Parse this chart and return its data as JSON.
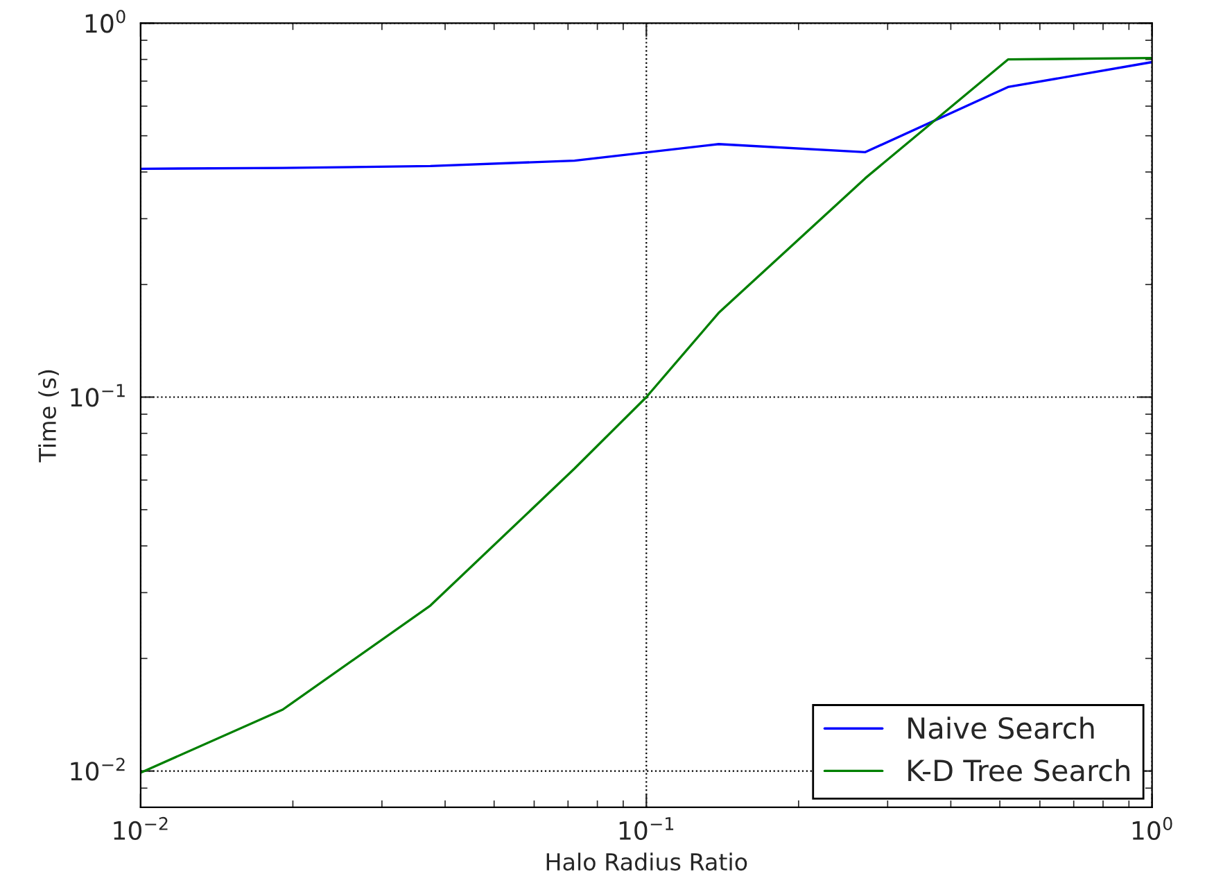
{
  "chart_data": {
    "type": "line",
    "xlabel": "Halo Radius Ratio",
    "ylabel": "Time (s)",
    "log": "xy",
    "grid": true,
    "legend": "bottom right",
    "xlim": [
      0.01,
      1
    ],
    "ylim": [
      0.008,
      1
    ],
    "xticks": [
      {
        "value": 0.01,
        "label": "10$^{−2}$"
      },
      {
        "value": 0.1,
        "label": "10$^{−1}$"
      },
      {
        "value": 1,
        "label": "10$^{0}$"
      }
    ],
    "yticks": [
      {
        "value": 0.01,
        "label": "10$^{−2}$"
      },
      {
        "value": 0.1,
        "label": "10$^{−1}$"
      },
      {
        "value": 1,
        "label": "10$^{0}$"
      }
    ],
    "x": [
      0.01,
      0.0191,
      0.0374,
      0.0721,
      0.139,
      0.271,
      0.519,
      1.0
    ],
    "series": [
      {
        "name": "Naive Search",
        "color": "#0000ff",
        "values": [
          0.408,
          0.41,
          0.415,
          0.429,
          0.475,
          0.452,
          0.675,
          0.787
        ]
      },
      {
        "name": "K-D Tree Search",
        "color": "#008000",
        "x": [
          0.01,
          0.0191,
          0.0374,
          0.0721,
          0.1,
          0.139,
          0.271,
          0.519,
          1.0
        ],
        "values": [
          0.0099,
          0.0146,
          0.0277,
          0.0644,
          0.1,
          0.168,
          0.385,
          0.8,
          0.807
        ]
      }
    ]
  }
}
